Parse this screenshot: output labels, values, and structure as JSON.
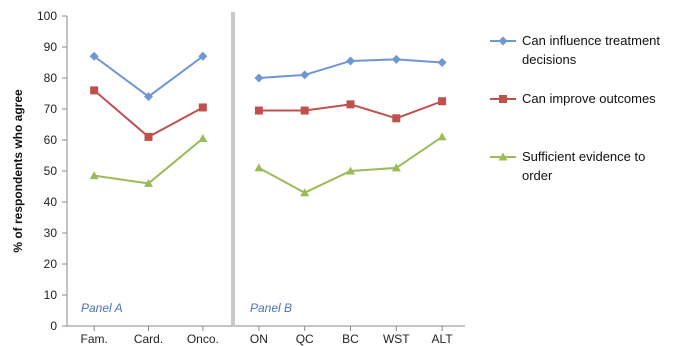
{
  "chart_data": {
    "type": "line",
    "ylabel": "% of respondents who agree",
    "ylim": [
      0,
      100
    ],
    "y_ticks": [
      0,
      10,
      20,
      30,
      40,
      50,
      60,
      70,
      80,
      90,
      100
    ],
    "grid": false,
    "legend_position": "right",
    "series_colors": [
      "#6f97d1",
      "#c0504d",
      "#9bbb59"
    ],
    "legend": [
      {
        "lines": [
          "Can influence treatment",
          "decisions"
        ]
      },
      {
        "lines": [
          "Can improve outcomes"
        ]
      },
      {
        "lines": [
          "Sufficient evidence to",
          "order"
        ]
      }
    ],
    "panels": [
      {
        "label": "Panel A",
        "categories": [
          "Fam.",
          "Card.",
          "Onco."
        ],
        "series": [
          {
            "name": "Can influence treatment decisions",
            "values": [
              87,
              74,
              87
            ]
          },
          {
            "name": "Can improve outcomes",
            "values": [
              76,
              61,
              70.5
            ]
          },
          {
            "name": "Sufficient evidence to order",
            "values": [
              48.5,
              46,
              60.5
            ]
          }
        ]
      },
      {
        "label": "Panel B",
        "categories": [
          "ON",
          "QC",
          "BC",
          "WST",
          "ALT"
        ],
        "series": [
          {
            "name": "Can influence treatment decisions",
            "values": [
              80,
              81,
              85.5,
              86,
              85
            ]
          },
          {
            "name": "Can improve outcomes",
            "values": [
              69.5,
              69.5,
              71.5,
              67,
              72.5
            ]
          },
          {
            "name": "Sufficient evidence to order",
            "values": [
              51,
              43,
              50,
              51,
              61
            ]
          }
        ]
      }
    ]
  }
}
